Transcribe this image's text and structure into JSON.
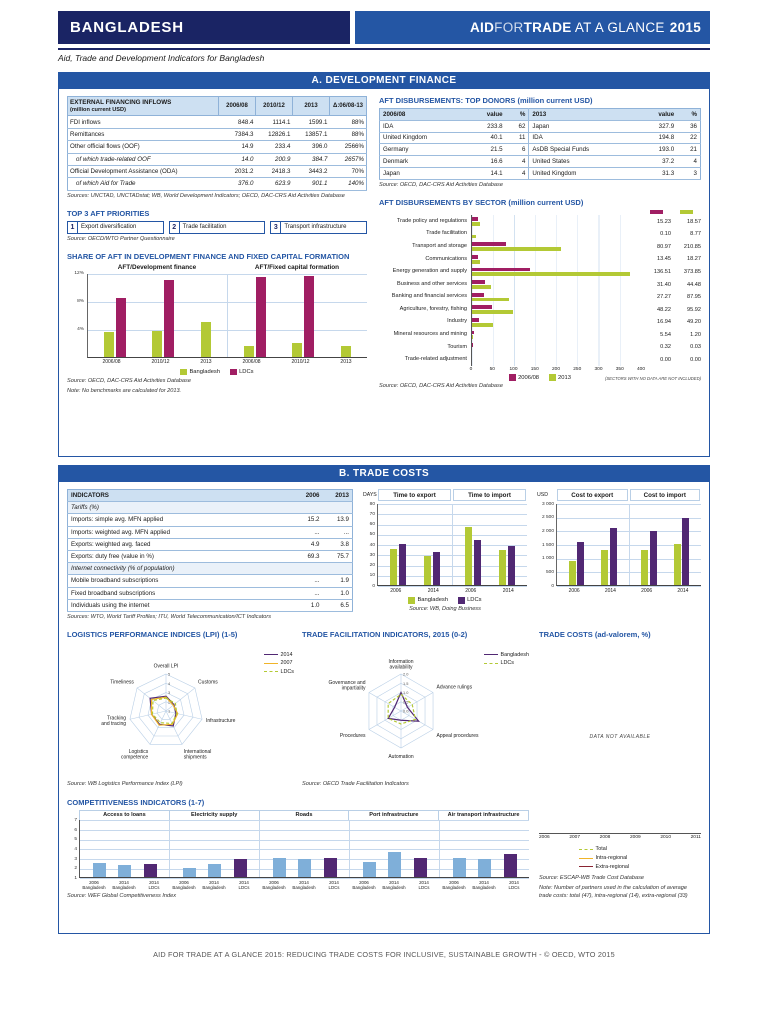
{
  "colors": {
    "banner": "#2456a4",
    "navy": "#1a2464",
    "green": "#b3c935",
    "magenta": "#a01e63",
    "purple": "#512873",
    "blue_bar": "#7fafd9",
    "yellow": "#f0b429",
    "dark_red": "#8a2432"
  },
  "page": {
    "country": "BANGLADESH",
    "brand": {
      "aid": "AID",
      "for": "FOR",
      "trade": "TRADE",
      "tagline": " AT A GLANCE ",
      "year": "2015"
    },
    "subtitle": "Aid, Trade and Development Indicators for Bangladesh",
    "footer": "AID FOR TRADE AT A GLANCE 2015: REDUCING TRADE COSTS FOR INCLUSIVE, SUSTAINABLE GROWTH - © OECD, WTO 2015"
  },
  "sectionA": {
    "title": "A. DEVELOPMENT FINANCE",
    "financing_table": {
      "title": "EXTERNAL FINANCING INFLOWS",
      "unit": "(million current USD)",
      "columns": [
        "2006/08",
        "2010/12",
        "2013",
        "Δ:06/08-13"
      ],
      "rows": [
        {
          "label": "FDI inflows",
          "indent": false,
          "values": [
            "848.4",
            "1114.1",
            "1599.1",
            "88%"
          ]
        },
        {
          "label": "Remittances",
          "indent": false,
          "values": [
            "7384.3",
            "12826.1",
            "13857.1",
            "88%"
          ]
        },
        {
          "label": "Other official flows (OOF)",
          "indent": false,
          "values": [
            "14.9",
            "233.4",
            "396.0",
            "2566%"
          ]
        },
        {
          "label": "of which trade-related OOF",
          "indent": true,
          "values": [
            "14.0",
            "200.9",
            "384.7",
            "2657%"
          ]
        },
        {
          "label": "Official Development Assistance (ODA)",
          "indent": false,
          "values": [
            "2031.2",
            "2418.3",
            "3443.2",
            "70%"
          ]
        },
        {
          "label": "of which Aid for Trade",
          "indent": true,
          "values": [
            "376.0",
            "623.9",
            "901.1",
            "140%"
          ]
        }
      ],
      "sources": "Sources:  UNCTAD, UNCTADstat; WB, World Development Indicators; OECD, DAC-CRS Aid Activities Database"
    },
    "priorities": {
      "title": "TOP 3 AFT PRIORITIES",
      "items": [
        {
          "rank": "1",
          "label": "Export diversification"
        },
        {
          "rank": "2",
          "label": "Trade facilitation"
        },
        {
          "rank": "3",
          "label": "Transport infrastructure"
        }
      ],
      "source": "Source:  OECD/WTO Partner Questionnaire"
    },
    "share_chart": {
      "type": "bar",
      "title": "SHARE OF AFT IN DEVELOPMENT FINANCE AND FIXED CAPITAL FORMATION",
      "ylim": [
        0,
        12
      ],
      "yticks": [
        "12%",
        "8%",
        "4%"
      ],
      "categories": [
        "2006/08",
        "2010/12",
        "2013"
      ],
      "panels": [
        {
          "label": "AFT/Development finance",
          "bangladesh": [
            3.5,
            3.7,
            5.0
          ],
          "ldcs": [
            8.4,
            11.0,
            null
          ]
        },
        {
          "label": "AFT/Fixed capital formation",
          "bangladesh": [
            1.5,
            1.9,
            1.5
          ],
          "ldcs": [
            11.4,
            11.6,
            null
          ]
        }
      ],
      "legend": [
        {
          "name": "Bangladesh",
          "color": "green"
        },
        {
          "name": "LDCs",
          "color": "magenta"
        }
      ],
      "source": "Source: OECD, DAC-CRS Aid Activities Database",
      "note": "Note: No benchmarks are calculated for 2013."
    },
    "donors": {
      "title": "AFT DISBURSEMENTS: TOP DONORS (million current USD)",
      "columns": [
        "2006/08",
        "value",
        "%",
        "2013",
        "value",
        "%"
      ],
      "rows": [
        [
          "IDA",
          "233.8",
          "62",
          "Japan",
          "327.9",
          "36"
        ],
        [
          "United Kingdom",
          "40.1",
          "11",
          "IDA",
          "194.8",
          "22"
        ],
        [
          "Germany",
          "21.5",
          "6",
          "AsDB Special Funds",
          "193.0",
          "21"
        ],
        [
          "Denmark",
          "16.6",
          "4",
          "United States",
          "37.2",
          "4"
        ],
        [
          "Japan",
          "14.1",
          "4",
          "United Kingdom",
          "31.3",
          "3"
        ]
      ],
      "source": "Source:  OECD, DAC-CRS Aid Activities Database"
    },
    "sector_chart": {
      "type": "bar-horizontal",
      "title": "AFT DISBURSEMENTS BY SECTOR  (million current USD)",
      "xlim": [
        0,
        400
      ],
      "xticks": [
        "0",
        "50",
        "100",
        "150",
        "200",
        "250",
        "300",
        "350",
        "400"
      ],
      "categories": [
        "Trade policy and regulations",
        "Trade facilitation",
        "Transport and storage",
        "Communications",
        "Energy generation and supply",
        "Business and other services",
        "Banking and financial services",
        "Agriculture, forestry, fishing",
        "Industry",
        "Mineral resources and mining",
        "Tourism",
        "Trade-related adjustment"
      ],
      "series": [
        {
          "name": "2006/08",
          "color": "magenta",
          "values": [
            15.23,
            0.1,
            80.97,
            13.45,
            136.51,
            31.4,
            27.27,
            48.22,
            16.94,
            5.54,
            0.32,
            0.0
          ]
        },
        {
          "name": "2013",
          "color": "green",
          "values": [
            18.57,
            8.77,
            210.85,
            18.27,
            373.85,
            44.48,
            87.95,
            95.92,
            49.2,
            1.2,
            0.03,
            0.0
          ]
        }
      ],
      "note": "(SECTORS WITH NO DATA ARE NOT INCLUDED)",
      "source": "Source:  OECD, DAC-CRS Aid Activities Database"
    }
  },
  "sectionB": {
    "title": "B. TRADE COSTS",
    "indicators": {
      "columns": [
        "INDICATORS",
        "2006",
        "2013"
      ],
      "groups": [
        {
          "header": "Tariffs (%)",
          "rows": [
            {
              "label": "Imports: simple avg. MFN applied",
              "values": [
                "15.2",
                "13.9"
              ]
            },
            {
              "label": "Imports: weighted avg. MFN applied",
              "values": [
                "...",
                "..."
              ]
            },
            {
              "label": "Exports: weighted avg. faced",
              "values": [
                "4.9",
                "3.8"
              ]
            },
            {
              "label": "Exports: duty free (value in %)",
              "values": [
                "69.3",
                "75.7"
              ]
            }
          ]
        },
        {
          "header": "Internet connectivity (% of population)",
          "rows": [
            {
              "label": "Mobile broadband subscriptions",
              "values": [
                "...",
                "1.9"
              ]
            },
            {
              "label": "Fixed broadband subscriptions",
              "values": [
                "...",
                "1.0"
              ]
            },
            {
              "label": "Individuals using the internet",
              "values": [
                "1.0",
                "6.5"
              ]
            }
          ]
        }
      ],
      "sources": "Sources: WTO, World Tariff Profiles; ITU, World Telecommunication/ICT Indicators"
    },
    "days_chart": {
      "type": "bar",
      "unit": "DAYS",
      "ylim": [
        0,
        80
      ],
      "yticks": [
        "80",
        "70",
        "60",
        "50",
        "40",
        "30",
        "20",
        "10",
        "0"
      ],
      "categories": [
        "2006",
        "2014"
      ],
      "panels": [
        {
          "label": "Time to export",
          "bangladesh": [
            35,
            28
          ],
          "ldcs": [
            40,
            32
          ]
        },
        {
          "label": "Time to import",
          "bangladesh": [
            57,
            34
          ],
          "ldcs": [
            44,
            38
          ]
        }
      ],
      "legend": [
        {
          "name": "Bangladesh",
          "color": "green"
        },
        {
          "name": "LDCs",
          "color": "purple"
        }
      ],
      "source": "Source:  WB, Doing Business"
    },
    "cost_chart": {
      "type": "bar",
      "unit": "USD",
      "ylim": [
        0,
        3000
      ],
      "yticks": [
        "3 000",
        "2 500",
        "2 000",
        "1 500",
        "1 000",
        "500",
        "0"
      ],
      "categories": [
        "2006",
        "2014"
      ],
      "panels": [
        {
          "label": "Cost to export",
          "bangladesh": [
            870,
            1280
          ],
          "ldcs": [
            1580,
            2100
          ]
        },
        {
          "label": "Cost to import",
          "bangladesh": [
            1290,
            1515
          ],
          "ldcs": [
            1980,
            2450
          ]
        }
      ]
    },
    "lpi": {
      "type": "radar",
      "title": "LOGISTICS PERFORMANCE INDICES (LPI) (1-5)",
      "scale": [
        1,
        5
      ],
      "rings": [
        2,
        3,
        4,
        5
      ],
      "tick_labels": [
        "1",
        "2",
        "3",
        "4",
        "5"
      ],
      "axes": [
        "Overall LPI",
        "Customs",
        "Infrastructure",
        "International shipments",
        "Logistics competence",
        "Tracking and tracing",
        "Timeliness"
      ],
      "series": [
        {
          "name": "2014",
          "color": "purple",
          "style": "solid",
          "values": [
            2.6,
            2.1,
            2.1,
            2.8,
            2.6,
            2.6,
            3.2
          ]
        },
        {
          "name": "2007",
          "color": "yellow",
          "style": "solid",
          "values": [
            2.5,
            2.0,
            2.3,
            2.6,
            2.7,
            2.6,
            3.0
          ]
        },
        {
          "name": "LDCs",
          "color": "green",
          "style": "dashed",
          "values": [
            2.4,
            2.3,
            2.2,
            2.5,
            2.4,
            2.5,
            2.8
          ]
        }
      ],
      "source": "Source:  WB Logistics Performance Index (LPI)"
    },
    "tfi": {
      "type": "radar",
      "title": "TRADE FACILITATION INDICATORS, 2015 (0-2)",
      "scale": [
        0,
        2
      ],
      "rings": [
        0.5,
        1,
        1.5,
        2
      ],
      "tick_labels": [
        "0.0",
        "0.5",
        "1.0",
        "1.5",
        "2.0"
      ],
      "axes": [
        "Information availability",
        "Advance rulings",
        "Appeal procedures",
        "Automation",
        "Procedures",
        "Governance and impartiality"
      ],
      "series": [
        {
          "name": "Bangladesh",
          "color": "purple",
          "style": "solid",
          "values": [
            1.0,
            0.4,
            1.1,
            0.5,
            0.8,
            0.4
          ]
        },
        {
          "name": "LDCs",
          "color": "green",
          "style": "dashed",
          "values": [
            0.9,
            0.7,
            0.9,
            0.7,
            0.8,
            0.8
          ]
        }
      ],
      "source": "Source: OECD Trade Facilitation Indicators"
    },
    "trade_costs": {
      "title": "TRADE COSTS (ad-valorem, %)",
      "message": "DATA NOT AVAILABLE",
      "years": [
        "2006",
        "2007",
        "2008",
        "2009",
        "2010",
        "2011"
      ],
      "legend": [
        {
          "name": "Total",
          "color": "green",
          "style": "dashed"
        },
        {
          "name": "Intra-regional",
          "color": "yellow",
          "style": "solid"
        },
        {
          "name": "Extra-regional",
          "color": "dark_red",
          "style": "solid"
        }
      ],
      "source": "Source:  ESCAP-WB Trade Cost Database",
      "note": "Note: Number of partners used in the calculation of average trade costs: total (47), intra-regional (14), extra-regional (33)"
    },
    "competitiveness": {
      "type": "bar",
      "title": "COMPETITIVENESS INDICATORS (1-7)",
      "ylim": [
        1,
        7
      ],
      "yticks": [
        "7",
        "6",
        "5",
        "4",
        "3",
        "2",
        "1"
      ],
      "groups": [
        "Access to loans",
        "Electricity supply",
        "Roads",
        "Port infrastructure",
        "Air transport infrastructure"
      ],
      "bar_labels": [
        [
          "2006",
          "Bangladesh"
        ],
        [
          "2014",
          "Bangladesh"
        ],
        [
          "2014",
          "LDCs"
        ]
      ],
      "series": [
        {
          "name": "2006 Bangladesh",
          "color": "blue_bar",
          "values": [
            2.5,
            2.0,
            3.0,
            2.6,
            3.0
          ]
        },
        {
          "name": "2014 Bangladesh",
          "color": "blue_bar",
          "values": [
            2.3,
            2.4,
            2.9,
            3.6,
            2.9
          ]
        },
        {
          "name": "2014 LDCs",
          "color": "purple",
          "values": [
            2.4,
            2.9,
            3.0,
            3.0,
            3.4
          ]
        }
      ],
      "source": "Source:  WEF Global Competitiveness Index"
    }
  }
}
